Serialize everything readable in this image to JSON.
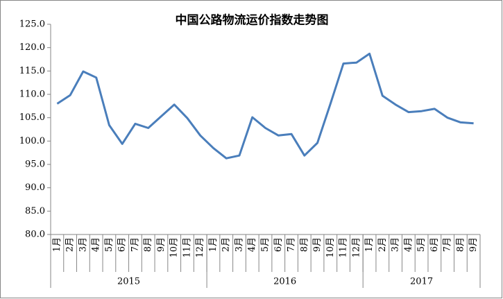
{
  "chart_data": {
    "type": "line",
    "title": "中国公路物流运价指数走势图",
    "groups": [
      {
        "name": "2015",
        "categories": [
          "1月",
          "2月",
          "3月",
          "4月",
          "5月",
          "6月",
          "7月",
          "8月",
          "9月",
          "10月",
          "11月",
          "12月"
        ]
      },
      {
        "name": "2016",
        "categories": [
          "1月",
          "2月",
          "3月",
          "4月",
          "5月",
          "6月",
          "7月",
          "8月",
          "9月",
          "10月",
          "11月",
          "12月"
        ]
      },
      {
        "name": "2017",
        "categories": [
          "1月",
          "2月",
          "3月",
          "4月",
          "5月",
          "6月",
          "7月",
          "8月",
          "9月"
        ]
      }
    ],
    "series": [
      {
        "color": "#4a7ebb",
        "values": [
          108.0,
          109.8,
          114.9,
          113.6,
          103.4,
          99.4,
          103.7,
          102.8,
          105.3,
          107.8,
          104.9,
          101.2,
          98.5,
          96.3,
          96.9,
          105.1,
          102.8,
          101.2,
          101.5,
          96.9,
          99.6,
          108.0,
          116.6,
          116.8,
          118.7,
          109.7,
          107.8,
          106.2,
          106.4,
          106.9,
          105.0,
          104.0,
          103.8
        ]
      }
    ],
    "ylim": [
      80,
      125
    ],
    "yticks": [
      {
        "value": 80,
        "label": "80.0"
      },
      {
        "value": 85,
        "label": "85.0"
      },
      {
        "value": 90,
        "label": "90.0"
      },
      {
        "value": 95,
        "label": "95.0"
      },
      {
        "value": 100,
        "label": "100.0"
      },
      {
        "value": 105,
        "label": "105.0"
      },
      {
        "value": 110,
        "label": "110.0"
      },
      {
        "value": 115,
        "label": "115.0"
      },
      {
        "value": 120,
        "label": "120.0"
      },
      {
        "value": 125,
        "label": "125.0"
      }
    ],
    "grid": false
  }
}
